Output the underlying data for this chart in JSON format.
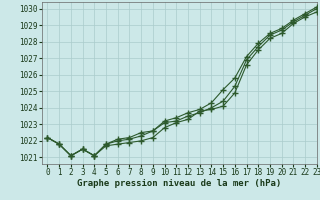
{
  "title": "Graphe pression niveau de la mer (hPa)",
  "background_color": "#cce8e8",
  "grid_color": "#aacccc",
  "line_color": "#2d5a2d",
  "xlim": [
    -0.5,
    23
  ],
  "ylim": [
    1020.6,
    1030.4
  ],
  "yticks": [
    1021,
    1022,
    1023,
    1024,
    1025,
    1026,
    1027,
    1028,
    1029,
    1030
  ],
  "xticks": [
    0,
    1,
    2,
    3,
    4,
    5,
    6,
    7,
    8,
    9,
    10,
    11,
    12,
    13,
    14,
    15,
    16,
    17,
    18,
    19,
    20,
    21,
    22,
    23
  ],
  "series1": [
    1022.2,
    1021.8,
    1021.1,
    1021.5,
    1021.1,
    1021.7,
    1021.8,
    1021.9,
    1022.0,
    1022.2,
    1022.8,
    1023.1,
    1023.3,
    1023.8,
    1023.9,
    1024.1,
    1024.9,
    1026.6,
    1027.5,
    1028.2,
    1028.5,
    1029.1,
    1029.5,
    1029.8
  ],
  "series2": [
    1022.2,
    1021.8,
    1021.1,
    1021.5,
    1021.1,
    1021.8,
    1022.0,
    1022.1,
    1022.3,
    1022.6,
    1023.1,
    1023.2,
    1023.5,
    1023.7,
    1024.0,
    1024.4,
    1025.3,
    1026.9,
    1027.7,
    1028.4,
    1028.7,
    1029.2,
    1029.6,
    1030.0
  ],
  "series3": [
    1022.2,
    1021.8,
    1021.1,
    1021.5,
    1021.1,
    1021.8,
    1022.1,
    1022.2,
    1022.5,
    1022.6,
    1023.2,
    1023.4,
    1023.7,
    1023.9,
    1024.3,
    1025.1,
    1025.8,
    1027.1,
    1027.9,
    1028.5,
    1028.8,
    1029.3,
    1029.7,
    1030.1
  ],
  "figsize": [
    3.2,
    2.0
  ],
  "dpi": 100
}
